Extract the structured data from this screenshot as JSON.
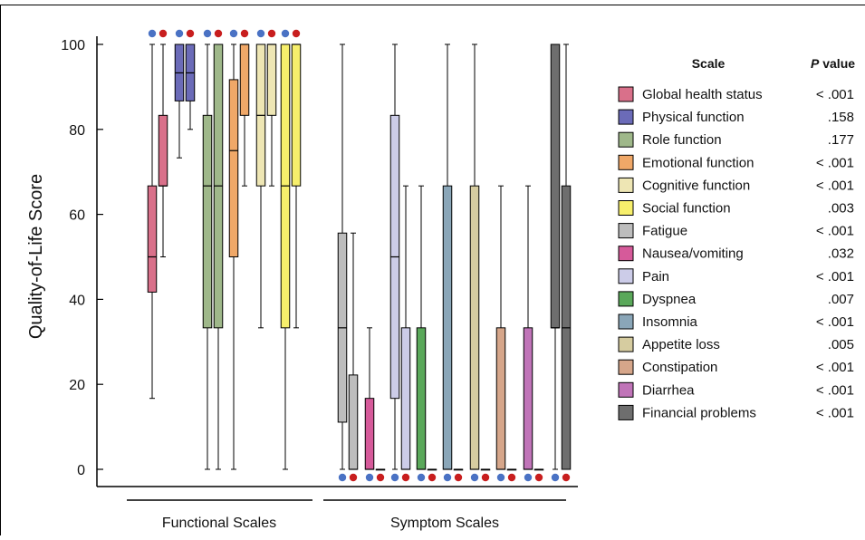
{
  "chart_data": {
    "type": "boxplot",
    "ylabel": "Quality-of-Life Score",
    "ylim": [
      0,
      100
    ],
    "yticks": [
      0,
      20,
      40,
      60,
      80,
      100
    ],
    "groups": [
      {
        "label": "Functional Scales",
        "scales": [
          "Global health status",
          "Physical function",
          "Role function",
          "Emotional function",
          "Cognitive function",
          "Social function"
        ]
      },
      {
        "label": "Symptom Scales",
        "scales": [
          "Fatigue",
          "Nausea/vomiting",
          "Pain",
          "Dyspnea",
          "Insomnia",
          "Appetite loss",
          "Constipation",
          "Diarrhea",
          "Financial problems"
        ]
      }
    ],
    "legend": {
      "header_scale": "Scale",
      "header_p_italic": "P",
      "header_p_rest": " value",
      "items": [
        {
          "name": "Global health status",
          "p": "< .001",
          "color": "#d9708a"
        },
        {
          "name": "Physical function",
          "p": ".158",
          "color": "#6b6bb8"
        },
        {
          "name": "Role function",
          "p": ".177",
          "color": "#9fb88a"
        },
        {
          "name": "Emotional function",
          "p": "< .001",
          "color": "#f0a868"
        },
        {
          "name": "Cognitive function",
          "p": "< .001",
          "color": "#eee6b4"
        },
        {
          "name": "Social function",
          "p": ".003",
          "color": "#f7ef6c"
        },
        {
          "name": "Fatigue",
          "p": "< .001",
          "color": "#bdbdbd"
        },
        {
          "name": "Nausea/vomiting",
          "p": ".032",
          "color": "#d65a9a"
        },
        {
          "name": "Pain",
          "p": "< .001",
          "color": "#cccce8"
        },
        {
          "name": "Dyspnea",
          "p": ".007",
          "color": "#5aa85a"
        },
        {
          "name": "Insomnia",
          "p": "< .001",
          "color": "#8aa6b8"
        },
        {
          "name": "Appetite loss",
          "p": ".005",
          "color": "#d6cca0"
        },
        {
          "name": "Constipation",
          "p": "< .001",
          "color": "#d6a68a"
        },
        {
          "name": "Diarrhea",
          "p": "< .001",
          "color": "#c074b8"
        },
        {
          "name": "Financial problems",
          "p": "< .001",
          "color": "#6e6e6e"
        }
      ]
    },
    "marker_colors": {
      "blue": "#4a72c4",
      "red": "#c81e1e"
    },
    "boxes": [
      {
        "scale": "Global health status",
        "group": "blue",
        "min": 16.7,
        "q1": 41.7,
        "median": 50,
        "q3": 66.7,
        "max": 100,
        "marker": "top"
      },
      {
        "scale": "Global health status",
        "group": "red",
        "min": 50,
        "q1": 66.7,
        "median": 66.7,
        "q3": 83.3,
        "max": 100,
        "marker": "top"
      },
      {
        "scale": "Physical function",
        "group": "blue",
        "min": 73.3,
        "q1": 86.7,
        "median": 93.3,
        "q3": 100,
        "max": 100,
        "marker": "top"
      },
      {
        "scale": "Physical function",
        "group": "red",
        "min": 80,
        "q1": 86.7,
        "median": 93.3,
        "q3": 100,
        "max": 100,
        "marker": "top"
      },
      {
        "scale": "Role function",
        "group": "blue",
        "min": 0,
        "q1": 33.3,
        "median": 66.7,
        "q3": 83.3,
        "max": 100,
        "marker": "top"
      },
      {
        "scale": "Role function",
        "group": "red",
        "min": 0,
        "q1": 33.3,
        "median": 66.7,
        "q3": 100,
        "max": 100,
        "marker": "top"
      },
      {
        "scale": "Emotional function",
        "group": "blue",
        "min": 0,
        "q1": 50,
        "median": 75,
        "q3": 91.7,
        "max": 100,
        "marker": "top"
      },
      {
        "scale": "Emotional function",
        "group": "red",
        "min": 66.7,
        "q1": 83.3,
        "median": 100,
        "q3": 100,
        "max": 100,
        "marker": "top"
      },
      {
        "scale": "Cognitive function",
        "group": "blue",
        "min": 33.3,
        "q1": 66.7,
        "median": 83.3,
        "q3": 100,
        "max": 100,
        "marker": "top"
      },
      {
        "scale": "Cognitive function",
        "group": "red",
        "min": 66.7,
        "q1": 83.3,
        "median": 100,
        "q3": 100,
        "max": 100,
        "marker": "top"
      },
      {
        "scale": "Social function",
        "group": "blue",
        "min": 0,
        "q1": 33.3,
        "median": 66.7,
        "q3": 100,
        "max": 100,
        "marker": "top"
      },
      {
        "scale": "Social function",
        "group": "red",
        "min": 33.3,
        "q1": 66.7,
        "median": 100,
        "q3": 100,
        "max": 100,
        "marker": "top"
      },
      {
        "scale": "Fatigue",
        "group": "blue",
        "min": 0,
        "q1": 11.1,
        "median": 33.3,
        "q3": 55.6,
        "max": 100,
        "marker": "bottom"
      },
      {
        "scale": "Fatigue",
        "group": "red",
        "min": 0,
        "q1": 0,
        "median": 0,
        "q3": 22.2,
        "max": 55.6,
        "marker": "bottom"
      },
      {
        "scale": "Nausea/vomiting",
        "group": "blue",
        "min": 0,
        "q1": 0,
        "median": 0,
        "q3": 16.7,
        "max": 33.3,
        "marker": "bottom"
      },
      {
        "scale": "Nausea/vomiting",
        "group": "red",
        "min": 0,
        "q1": 0,
        "median": 0,
        "q3": 0,
        "max": 0,
        "marker": "bottom"
      },
      {
        "scale": "Pain",
        "group": "blue",
        "min": 0,
        "q1": 16.7,
        "median": 50,
        "q3": 83.3,
        "max": 100,
        "marker": "bottom"
      },
      {
        "scale": "Pain",
        "group": "red",
        "min": 0,
        "q1": 0,
        "median": 0,
        "q3": 33.3,
        "max": 66.7,
        "marker": "bottom"
      },
      {
        "scale": "Dyspnea",
        "group": "blue",
        "min": 0,
        "q1": 0,
        "median": 0,
        "q3": 33.3,
        "max": 66.7,
        "marker": "bottom"
      },
      {
        "scale": "Dyspnea",
        "group": "red",
        "min": 0,
        "q1": 0,
        "median": 0,
        "q3": 0,
        "max": 0,
        "marker": "bottom"
      },
      {
        "scale": "Insomnia",
        "group": "blue",
        "min": 0,
        "q1": 0,
        "median": 0,
        "q3": 66.7,
        "max": 100,
        "marker": "bottom"
      },
      {
        "scale": "Insomnia",
        "group": "red",
        "min": 0,
        "q1": 0,
        "median": 0,
        "q3": 0,
        "max": 0,
        "marker": "bottom"
      },
      {
        "scale": "Appetite loss",
        "group": "blue",
        "min": 0,
        "q1": 0,
        "median": 0,
        "q3": 66.7,
        "max": 100,
        "marker": "bottom"
      },
      {
        "scale": "Appetite loss",
        "group": "red",
        "min": 0,
        "q1": 0,
        "median": 0,
        "q3": 0,
        "max": 0,
        "marker": "bottom"
      },
      {
        "scale": "Constipation",
        "group": "blue",
        "min": 0,
        "q1": 0,
        "median": 0,
        "q3": 33.3,
        "max": 66.7,
        "marker": "bottom"
      },
      {
        "scale": "Constipation",
        "group": "red",
        "min": 0,
        "q1": 0,
        "median": 0,
        "q3": 0,
        "max": 0,
        "marker": "bottom"
      },
      {
        "scale": "Diarrhea",
        "group": "blue",
        "min": 0,
        "q1": 0,
        "median": 0,
        "q3": 33.3,
        "max": 66.7,
        "marker": "bottom"
      },
      {
        "scale": "Diarrhea",
        "group": "red",
        "min": 0,
        "q1": 0,
        "median": 0,
        "q3": 0,
        "max": 0,
        "marker": "bottom"
      },
      {
        "scale": "Financial problems",
        "group": "blue",
        "min": 0,
        "q1": 33.3,
        "median": 33.3,
        "q3": 100,
        "max": 100,
        "marker": "bottom"
      },
      {
        "scale": "Financial problems",
        "group": "red",
        "min": 0,
        "q1": 0,
        "median": 33.3,
        "q3": 66.7,
        "max": 100,
        "marker": "bottom"
      }
    ]
  }
}
